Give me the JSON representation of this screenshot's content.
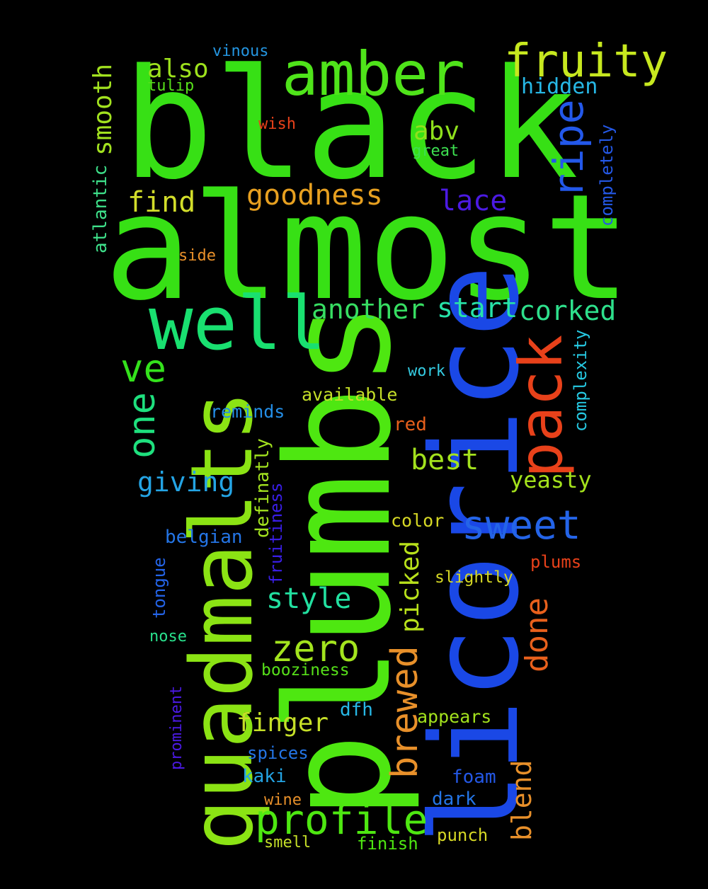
{
  "background_color": "#000000",
  "words": [
    {
      "id": "black",
      "text": "black",
      "color": "#37e015"
    },
    {
      "id": "almost",
      "text": "almost",
      "color": "#37e015"
    },
    {
      "id": "plumbs",
      "text": "plumbs",
      "color": "#4ee711"
    },
    {
      "id": "licorice",
      "text": "licorice",
      "color": "#1a48e6"
    },
    {
      "id": "quadmalts",
      "text": "quadmalts",
      "color": "#8be314"
    },
    {
      "id": "well",
      "text": "well",
      "color": "#19e070"
    },
    {
      "id": "amber",
      "text": "amber",
      "color": "#4fe41a"
    },
    {
      "id": "fruity",
      "text": "fruity",
      "color": "#c7e81f"
    },
    {
      "id": "pack",
      "text": "pack",
      "color": "#e8411a"
    },
    {
      "id": "ripe",
      "text": "ripe",
      "color": "#2358ea"
    },
    {
      "id": "goodness",
      "text": "goodness",
      "color": "#e7a020"
    },
    {
      "id": "profile",
      "text": "profile",
      "color": "#4ee711"
    },
    {
      "id": "sweet",
      "text": "sweet",
      "color": "#2464e8"
    },
    {
      "id": "zero",
      "text": "zero",
      "color": "#a3e41e"
    },
    {
      "id": "brewed",
      "text": "brewed",
      "color": "#e8902a"
    },
    {
      "id": "one",
      "text": "one",
      "color": "#1ee07e"
    },
    {
      "id": "ve",
      "text": "ve",
      "color": "#34e21c"
    },
    {
      "id": "another",
      "text": "another",
      "color": "#37de62"
    },
    {
      "id": "start",
      "text": "start",
      "color": "#27e2a8"
    },
    {
      "id": "corked",
      "text": "corked",
      "color": "#2ee08c"
    },
    {
      "id": "lace",
      "text": "lace",
      "color": "#4b1ae3"
    },
    {
      "id": "find",
      "text": "find",
      "color": "#d2dd2a"
    },
    {
      "id": "also",
      "text": "also",
      "color": "#9de11d"
    },
    {
      "id": "smooth",
      "text": "smooth",
      "color": "#a2e21f"
    },
    {
      "id": "abv",
      "text": "abv",
      "color": "#8fe11c"
    },
    {
      "id": "hidden",
      "text": "hidden",
      "color": "#27b8e6"
    },
    {
      "id": "best",
      "text": "best",
      "color": "#a3e21d"
    },
    {
      "id": "done",
      "text": "done",
      "color": "#e8601c"
    },
    {
      "id": "giving",
      "text": "giving",
      "color": "#24a4e4"
    },
    {
      "id": "style",
      "text": "style",
      "color": "#22e0a0"
    },
    {
      "id": "picked",
      "text": "picked",
      "color": "#b8e11b"
    },
    {
      "id": "finger",
      "text": "finger",
      "color": "#c5df28"
    },
    {
      "id": "blend",
      "text": "blend",
      "color": "#e8902a"
    },
    {
      "id": "yeasty",
      "text": "yeasty",
      "color": "#a4e21c"
    },
    {
      "id": "vinous",
      "text": "vinous",
      "color": "#2495e0"
    },
    {
      "id": "tulip",
      "text": "tulip",
      "color": "#57e01a"
    },
    {
      "id": "wish",
      "text": "wish",
      "color": "#e8411a"
    },
    {
      "id": "great",
      "text": "great",
      "color": "#3de050"
    },
    {
      "id": "atlantic",
      "text": "atlantic",
      "color": "#3ee08a"
    },
    {
      "id": "side",
      "text": "side",
      "color": "#e8902a"
    },
    {
      "id": "completely",
      "text": "completely",
      "color": "#2458e6"
    },
    {
      "id": "complexity",
      "text": "complexity",
      "color": "#26c9e2"
    },
    {
      "id": "work",
      "text": "work",
      "color": "#35cce2"
    },
    {
      "id": "available",
      "text": "available",
      "color": "#c5df28"
    },
    {
      "id": "reminds",
      "text": "reminds",
      "color": "#248ee6"
    },
    {
      "id": "red",
      "text": "red",
      "color": "#e8601c"
    },
    {
      "id": "definatly",
      "text": "definatly",
      "color": "#a2e21f"
    },
    {
      "id": "fruitiness",
      "text": "fruitiness",
      "color": "#3a1ee6"
    },
    {
      "id": "color",
      "text": "color",
      "color": "#d6d825"
    },
    {
      "id": "belgian",
      "text": "belgian",
      "color": "#2475e6"
    },
    {
      "id": "plums",
      "text": "plums",
      "color": "#e8411a"
    },
    {
      "id": "slightly",
      "text": "slightly",
      "color": "#d6d825"
    },
    {
      "id": "tongue",
      "text": "tongue",
      "color": "#2464e8"
    },
    {
      "id": "nose",
      "text": "nose",
      "color": "#29e08c"
    },
    {
      "id": "booziness",
      "text": "booziness",
      "color": "#57e01a"
    },
    {
      "id": "prominent",
      "text": "prominent",
      "color": "#4b1ae3"
    },
    {
      "id": "dfh",
      "text": "dfh",
      "color": "#27b8e6"
    },
    {
      "id": "appears",
      "text": "appears",
      "color": "#a3e21d"
    },
    {
      "id": "spices",
      "text": "spices",
      "color": "#2475e6"
    },
    {
      "id": "kaki",
      "text": "kaki",
      "color": "#24a4e4"
    },
    {
      "id": "foam",
      "text": "foam",
      "color": "#2458e6"
    },
    {
      "id": "wine",
      "text": "wine",
      "color": "#e8902a"
    },
    {
      "id": "dark",
      "text": "dark",
      "color": "#2475e6"
    },
    {
      "id": "smell",
      "text": "smell",
      "color": "#c5df28"
    },
    {
      "id": "finish",
      "text": "finish",
      "color": "#4ee711"
    },
    {
      "id": "punch",
      "text": "punch",
      "color": "#d6d825"
    }
  ]
}
